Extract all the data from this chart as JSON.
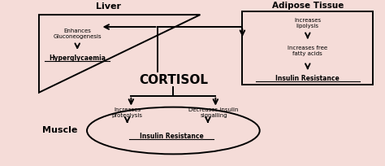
{
  "bg_color": "#f5dcd8",
  "fig_bg": "#f5dcd8",
  "liver_label": "Liver",
  "adipose_label": "Adipose Tissue",
  "muscle_label": "Muscle",
  "cortisol_label": "CORTISOL",
  "liver_text1": "Enhances\nGluconeogenesis",
  "liver_text2": "Hyperglycaemia",
  "adipose_text1": "Increases\nlipolysis",
  "adipose_text2": "Increases free\nfatty acids",
  "adipose_text3": "Insulin Resistance",
  "muscle_text1": "Increases\nproteolysis",
  "muscle_text2": "Decreases insulin\nsignalling",
  "muscle_text3": "Insulin Resistance"
}
